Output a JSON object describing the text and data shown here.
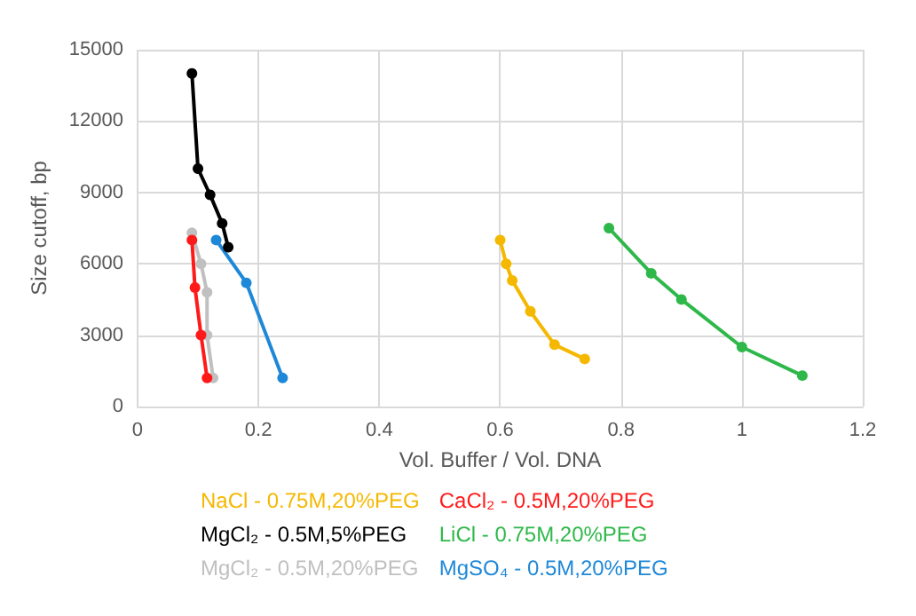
{
  "chart_data": {
    "type": "line",
    "xlabel": "Vol. Buffer / Vol. DNA",
    "ylabel": "Size cutoff, bp",
    "xlim": [
      0,
      1.2
    ],
    "xticks": [
      0,
      0.2,
      0.4,
      0.6,
      0.8,
      1,
      1.2
    ],
    "ylim": [
      0,
      15000
    ],
    "yticks": [
      0,
      3000,
      6000,
      9000,
      12000,
      15000
    ],
    "grid": true,
    "legend": "bottom",
    "marker": "circle",
    "series": [
      {
        "name": "NaCl - 0.75M,20%PEG",
        "color": "#f5b800",
        "x": [
          0.6,
          0.61,
          0.62,
          0.65,
          0.69,
          0.74
        ],
        "values": [
          7000,
          6000,
          5300,
          4000,
          2600,
          2000
        ]
      },
      {
        "name": "MgCl₂ - 0.5M,5%PEG",
        "color": "#000000",
        "x": [
          0.09,
          0.1,
          0.12,
          0.14,
          0.15
        ],
        "values": [
          14000,
          10000,
          8900,
          7700,
          6700
        ]
      },
      {
        "name": "MgCl₂ - 0.5M,20%PEG",
        "color": "#c0c0c0",
        "x": [
          0.09,
          0.105,
          0.115,
          0.115,
          0.125
        ],
        "values": [
          7300,
          6000,
          4800,
          3000,
          1200
        ]
      },
      {
        "name": "CaCl₂ - 0.5M,20%PEG",
        "color": "#ff1a1a",
        "x": [
          0.09,
          0.095,
          0.105,
          0.115
        ],
        "values": [
          7000,
          5000,
          3000,
          1200
        ]
      },
      {
        "name": "LiCl - 0.75M,20%PEG",
        "color": "#2eb84a",
        "x": [
          0.78,
          0.85,
          0.9,
          1.0,
          1.1
        ],
        "values": [
          7500,
          5600,
          4500,
          2500,
          1300
        ]
      },
      {
        "name": "MgSO₄ - 0.5M,20%PEG",
        "color": "#1e88d8",
        "x": [
          0.13,
          0.18,
          0.24
        ],
        "values": [
          7000,
          5200,
          1200
        ]
      }
    ]
  }
}
